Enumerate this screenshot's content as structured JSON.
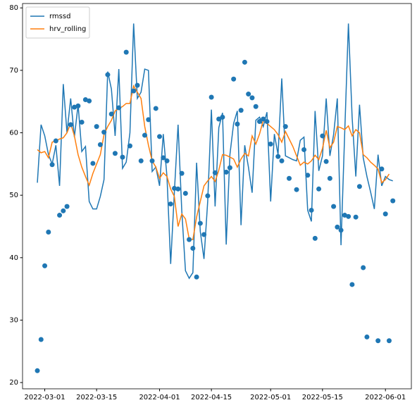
{
  "chart_data": {
    "type": "line",
    "x": [
      "2022-02-27",
      "2022-02-28",
      "2022-03-01",
      "2022-03-02",
      "2022-03-03",
      "2022-03-04",
      "2022-03-05",
      "2022-03-06",
      "2022-03-07",
      "2022-03-08",
      "2022-03-09",
      "2022-03-10",
      "2022-03-11",
      "2022-03-12",
      "2022-03-13",
      "2022-03-14",
      "2022-03-15",
      "2022-03-16",
      "2022-03-17",
      "2022-03-18",
      "2022-03-19",
      "2022-03-20",
      "2022-03-21",
      "2022-03-22",
      "2022-03-23",
      "2022-03-24",
      "2022-03-25",
      "2022-03-26",
      "2022-03-27",
      "2022-03-28",
      "2022-03-29",
      "2022-03-30",
      "2022-03-31",
      "2022-04-01",
      "2022-04-02",
      "2022-04-03",
      "2022-04-04",
      "2022-04-05",
      "2022-04-06",
      "2022-04-07",
      "2022-04-08",
      "2022-04-09",
      "2022-04-10",
      "2022-04-11",
      "2022-04-12",
      "2022-04-13",
      "2022-04-14",
      "2022-04-15",
      "2022-04-16",
      "2022-04-17",
      "2022-04-18",
      "2022-04-19",
      "2022-04-20",
      "2022-04-21",
      "2022-04-22",
      "2022-04-23",
      "2022-04-24",
      "2022-04-25",
      "2022-04-26",
      "2022-04-27",
      "2022-04-28",
      "2022-04-29",
      "2022-04-30",
      "2022-05-01",
      "2022-05-02",
      "2022-05-03",
      "2022-05-04",
      "2022-05-05",
      "2022-05-06",
      "2022-05-07",
      "2022-05-08",
      "2022-05-09",
      "2022-05-10",
      "2022-05-11",
      "2022-05-12",
      "2022-05-13",
      "2022-05-14",
      "2022-05-15",
      "2022-05-16",
      "2022-05-17",
      "2022-05-18",
      "2022-05-19",
      "2022-05-20",
      "2022-05-21",
      "2022-05-22",
      "2022-05-23",
      "2022-05-24",
      "2022-05-25",
      "2022-05-26",
      "2022-05-27",
      "2022-05-28",
      "2022-05-29",
      "2022-05-30",
      "2022-05-31",
      "2022-06-01",
      "2022-06-02",
      "2022-06-03"
    ],
    "series": [
      {
        "name": "rmssd",
        "color": "#1f77b4",
        "values": [
          52,
          61.3,
          59.5,
          56.5,
          55,
          58,
          51.5,
          67.8,
          60,
          65.5,
          59.3,
          64.5,
          57,
          57.8,
          49,
          47.8,
          47.8,
          49.8,
          52.5,
          69.8,
          67,
          59.5,
          70.2,
          54.3,
          55.3,
          60,
          77.5,
          65.5,
          66.5,
          70.2,
          70,
          53.8,
          54.5,
          51.5,
          59.8,
          53,
          39,
          50.5,
          61.3,
          47.5,
          37.9,
          36.7,
          37.6,
          55.2,
          44.2,
          39.8,
          49,
          63.7,
          48.2,
          60.8,
          63.2,
          42.1,
          56.5,
          61.5,
          63.5,
          45.2,
          58,
          54.5,
          50.4,
          62,
          62.5,
          61,
          63.3,
          49,
          59.8,
          56.5,
          68.7,
          56.3,
          56,
          55.7,
          55.5,
          58.8,
          59.3,
          47.6,
          45.8,
          63.5,
          53.9,
          56.3,
          65.5,
          56.3,
          59.7,
          65.5,
          42,
          60,
          77.5,
          62.5,
          53,
          64.5,
          56,
          53,
          50.5,
          47.8,
          56.5,
          51.5,
          53,
          52.5,
          52.3
        ]
      },
      {
        "name": "hrv_rolling",
        "color": "#ff7f0e",
        "values": [
          57.3,
          56.8,
          57,
          56,
          58.5,
          58.7,
          59,
          59.2,
          60,
          61.5,
          59.5,
          56.5,
          54.5,
          53,
          51.6,
          53.5,
          55,
          56.5,
          59.7,
          61,
          62,
          63.5,
          63.9,
          64.2,
          64.7,
          64.7,
          67.5,
          66.5,
          65.5,
          61,
          58,
          55.5,
          54.5,
          52.7,
          53.6,
          53,
          51,
          49.8,
          45,
          47,
          46.2,
          43,
          42.9,
          46.5,
          49,
          51.5,
          52.3,
          53,
          52.2,
          54,
          56.5,
          56.4,
          56.1,
          55.8,
          54.5,
          55.8,
          56.7,
          56.3,
          59.5,
          58.2,
          59.8,
          62,
          61.5,
          61,
          60.5,
          59.7,
          58.5,
          60.2,
          59,
          57.8,
          56.3,
          54.8,
          55.3,
          55,
          55.5,
          56.4,
          55.7,
          57.5,
          60.4,
          57.6,
          58.5,
          61,
          60.8,
          60.5,
          61.1,
          59.5,
          60.5,
          60,
          56.5,
          56,
          55.3,
          54.8,
          54.2,
          52,
          52.5,
          53.4,
          null
        ]
      },
      {
        "type": "scatter",
        "color": "#1f77b4",
        "values": [
          21.9,
          26.9,
          38.7,
          44.1,
          54.9,
          58.7,
          46.8,
          47.5,
          48.2,
          61.3,
          64.1,
          64.3,
          61.7,
          65.3,
          65.1,
          55.1,
          61,
          58.1,
          60.1,
          69.3,
          63,
          56.7,
          64,
          56.1,
          72.9,
          57.9,
          66.7,
          67.6,
          55.5,
          59.6,
          62.1,
          55.5,
          63.9,
          59.4,
          56,
          55.5,
          48.6,
          51.1,
          51,
          53.5,
          50.3,
          42.9,
          41.5,
          36.9,
          45.5,
          43.7,
          49.9,
          65.7,
          53.6,
          62.2,
          62.5,
          53.7,
          54.4,
          68.6,
          61.4,
          63.6,
          71.3,
          66.2,
          65.6,
          64.2,
          61.8,
          62.2,
          61.8,
          58.2,
          null,
          56.2,
          55.5,
          61,
          52.7,
          null,
          50.9,
          null,
          57.3,
          53.2,
          47.6,
          43.1,
          51,
          59.5,
          55.4,
          52.7,
          48.2,
          44.9,
          44.4,
          46.8,
          46.6,
          35.7,
          46.5,
          51.4,
          38.4,
          27.3,
          null,
          null,
          26.7,
          54.2,
          47,
          26.7,
          49.1
        ]
      }
    ],
    "xlim": [
      "2022-02-23",
      "2022-06-08"
    ],
    "xticks": [
      "2022-03-01",
      "2022-03-15",
      "2022-04-01",
      "2022-04-15",
      "2022-05-01",
      "2022-05-15",
      "2022-06-01"
    ],
    "ylim": [
      19,
      80.7
    ],
    "yticks": [
      20,
      30,
      40,
      50,
      60,
      70,
      80
    ],
    "legend": "upper left"
  }
}
